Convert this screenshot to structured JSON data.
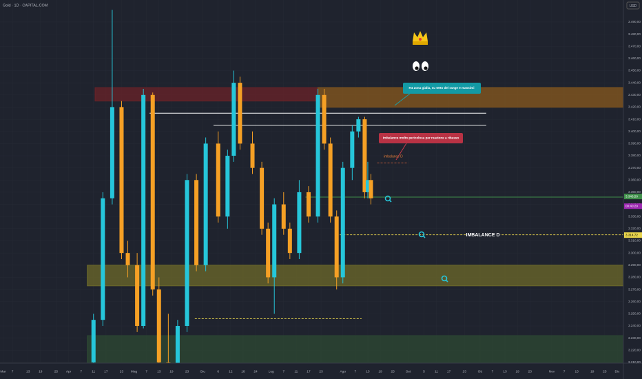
{
  "chart_data": {
    "type": "candlestick",
    "title": "Gold · 1D · CAPITAL.COM",
    "currency": "USD",
    "up_color": "#26c6da",
    "down_color": "#f5a025",
    "xlim": [
      0,
      200
    ],
    "ylim": [
      3209.4,
      3508.1
    ],
    "xticks": [
      {
        "value": 1,
        "label": "Mar"
      },
      {
        "value": 4,
        "label": "7"
      },
      {
        "value": 9,
        "label": "13"
      },
      {
        "value": 13,
        "label": "19"
      },
      {
        "value": 18,
        "label": "25"
      },
      {
        "value": 22,
        "label": "Apr"
      },
      {
        "value": 26,
        "label": "7"
      },
      {
        "value": 30,
        "label": "11"
      },
      {
        "value": 34,
        "label": "17"
      },
      {
        "value": 39,
        "label": "23"
      },
      {
        "value": 43,
        "label": "Mag"
      },
      {
        "value": 47,
        "label": "7"
      },
      {
        "value": 51,
        "label": "13"
      },
      {
        "value": 55,
        "label": "19"
      },
      {
        "value": 60,
        "label": "23"
      },
      {
        "value": 65,
        "label": "Giu"
      },
      {
        "value": 70,
        "label": "6"
      },
      {
        "value": 74,
        "label": "12"
      },
      {
        "value": 78,
        "label": "18"
      },
      {
        "value": 82,
        "label": "24"
      },
      {
        "value": 87,
        "label": "Lug"
      },
      {
        "value": 91,
        "label": "7"
      },
      {
        "value": 95,
        "label": "11"
      },
      {
        "value": 99,
        "label": "17"
      },
      {
        "value": 103,
        "label": "23"
      },
      {
        "value": 110,
        "label": "Ago"
      },
      {
        "value": 114,
        "label": "7"
      },
      {
        "value": 118,
        "label": "13"
      },
      {
        "value": 122,
        "label": "19"
      },
      {
        "value": 126,
        "label": "25"
      },
      {
        "value": 131,
        "label": "Set"
      },
      {
        "value": 136,
        "label": "5"
      },
      {
        "value": 140,
        "label": "11"
      },
      {
        "value": 144,
        "label": "17"
      },
      {
        "value": 149,
        "label": "23"
      },
      {
        "value": 154,
        "label": "Ott"
      },
      {
        "value": 158,
        "label": "7"
      },
      {
        "value": 162,
        "label": "13"
      },
      {
        "value": 166,
        "label": "19"
      },
      {
        "value": 170,
        "label": "23"
      },
      {
        "value": 177,
        "label": "Nov"
      },
      {
        "value": 181,
        "label": "7"
      },
      {
        "value": 185,
        "label": "13"
      },
      {
        "value": 190,
        "label": "19"
      },
      {
        "value": 194,
        "label": "25"
      },
      {
        "value": 198,
        "label": "Dic"
      }
    ],
    "yticks": [
      {
        "value": 3490,
        "label": "3.490,00"
      },
      {
        "value": 3480,
        "label": "3.480,00"
      },
      {
        "value": 3470,
        "label": "3.470,00"
      },
      {
        "value": 3460,
        "label": "3.460,00"
      },
      {
        "value": 3450,
        "label": "3.450,00"
      },
      {
        "value": 3440,
        "label": "3.440,00"
      },
      {
        "value": 3430,
        "label": "3.430,00"
      },
      {
        "value": 3420,
        "label": "3.420,00"
      },
      {
        "value": 3410,
        "label": "3.410,00"
      },
      {
        "value": 3400,
        "label": "3.400,00"
      },
      {
        "value": 3390,
        "label": "3.390,00"
      },
      {
        "value": 3380,
        "label": "3.380,00"
      },
      {
        "value": 3370,
        "label": "3.370,00"
      },
      {
        "value": 3360,
        "label": "3.360,00"
      },
      {
        "value": 3350,
        "label": "3.350,00"
      },
      {
        "value": 3340,
        "label": "3.340,00"
      },
      {
        "value": 3330,
        "label": "3.330,00"
      },
      {
        "value": 3320,
        "label": "3.320,00"
      },
      {
        "value": 3310,
        "label": "3.310,00"
      },
      {
        "value": 3300,
        "label": "3.300,00"
      },
      {
        "value": 3290,
        "label": "3.290,00"
      },
      {
        "value": 3280,
        "label": "3.280,00"
      },
      {
        "value": 3270,
        "label": "3.270,00"
      },
      {
        "value": 3260,
        "label": "3.260,00"
      },
      {
        "value": 3250,
        "label": "3.250,00"
      },
      {
        "value": 3240,
        "label": "3.240,00"
      },
      {
        "value": 3230,
        "label": "3.230,00"
      },
      {
        "value": 3220,
        "label": "3.220,00"
      },
      {
        "value": 3210,
        "label": "3.210,00"
      }
    ],
    "x": [
      30,
      33,
      36,
      39,
      41,
      44,
      46,
      49,
      51,
      54,
      57,
      60,
      63,
      66,
      70,
      73,
      75,
      77,
      81,
      84,
      86,
      88,
      91,
      93,
      96,
      99,
      102,
      104,
      106,
      108,
      110,
      113,
      115,
      117,
      118,
      119
    ],
    "open": [
      3210,
      3245,
      3345,
      3420,
      3300,
      3290,
      3240,
      3430,
      3270,
      3210,
      3200,
      3240,
      3360,
      3290,
      3390,
      3330,
      3380,
      3440,
      3390,
      3370,
      3320,
      3280,
      3340,
      3320,
      3300,
      3350,
      3330,
      3430,
      3390,
      3330,
      3280,
      3370,
      3400,
      3410,
      3350,
      3360
    ],
    "high": [
      3250,
      3350,
      3500,
      3425,
      3310,
      3300,
      3435,
      3432,
      3280,
      3250,
      3245,
      3365,
      3365,
      3395,
      3400,
      3385,
      3450,
      3445,
      3400,
      3375,
      3325,
      3345,
      3350,
      3325,
      3360,
      3355,
      3435,
      3435,
      3395,
      3335,
      3375,
      3405,
      3412,
      3412,
      3375,
      3365
    ],
    "low": [
      3195,
      3240,
      3340,
      3295,
      3280,
      3235,
      3238,
      3265,
      3205,
      3195,
      3195,
      3235,
      3285,
      3285,
      3325,
      3320,
      3375,
      3385,
      3365,
      3315,
      3275,
      3250,
      3315,
      3295,
      3295,
      3325,
      3325,
      3385,
      3325,
      3270,
      3275,
      3360,
      3395,
      3345,
      3345,
      3340
    ],
    "close": [
      3245,
      3345,
      3420,
      3300,
      3290,
      3240,
      3430,
      3270,
      3210,
      3200,
      3240,
      3360,
      3290,
      3390,
      3330,
      3380,
      3440,
      3390,
      3370,
      3320,
      3280,
      3340,
      3320,
      3300,
      3350,
      3330,
      3430,
      3390,
      3330,
      3280,
      3370,
      3400,
      3410,
      3350,
      3360,
      3345
    ],
    "zones": [
      {
        "x": [
          30.5,
          102
        ],
        "y": [
          3425,
          3436
        ],
        "color": "#6b2328"
      },
      {
        "x": [
          102,
          200
        ],
        "y": [
          3420,
          3436
        ],
        "color": "#8a5a1e"
      },
      {
        "x": [
          28,
          200
        ],
        "y": [
          3273,
          3290
        ],
        "color": "#6d6a2a"
      },
      {
        "x": [
          28,
          200
        ],
        "y": [
          3200,
          3232
        ],
        "color": "#2e4a33"
      }
    ],
    "lines": [
      {
        "x": [
          48,
          156
        ],
        "y": 3415,
        "color": "#ffffff",
        "dash": false
      },
      {
        "x": [
          68.5,
          156
        ],
        "y": 3405,
        "color": "#ffffff",
        "dash": false
      },
      {
        "x": [
          62.5,
          116
        ],
        "y": 3246,
        "color": "#e8d44d",
        "dash": true
      },
      {
        "x": [
          109,
          200
        ],
        "y": 3315,
        "color": "#e8d44d",
        "dash": true
      },
      {
        "x": [
          98,
          200
        ],
        "y": 3346,
        "color": "#3f8f4a",
        "dash": false
      },
      {
        "x": [
          121,
          131
        ],
        "y": 3374,
        "color": "#d2603a",
        "dash": true
      }
    ],
    "price_labels": [
      {
        "value": 3346.5,
        "label": "3.346,50",
        "color": "#3f8f4a"
      },
      {
        "value": 3338.5,
        "label": "00:40:29",
        "color": "#9c27b0"
      },
      {
        "value": 3314.72,
        "label": "3.314,72",
        "color": "#e8d44d"
      }
    ],
    "annotations": {
      "h4": "H4 zona gialla, su tetto del range e massimi",
      "danger": "imbalance molto pericolosa per reazione a ribasso",
      "imb_small": "imbalance D",
      "imb_big": "IMBALANCE D"
    }
  }
}
